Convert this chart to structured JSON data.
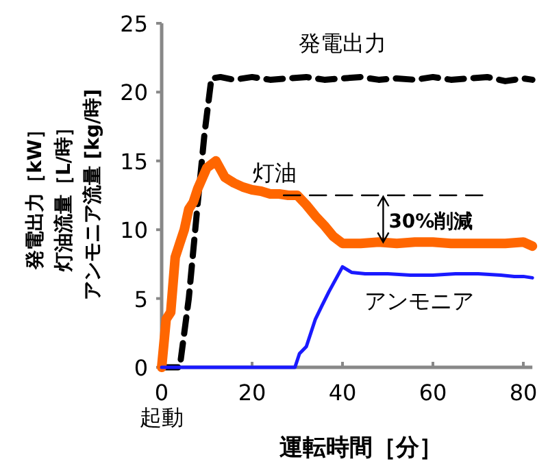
{
  "chart_data": {
    "type": "line",
    "xlabel": "運転時間［分］",
    "ylabel": "発電出力［kW］灯油流量［L/時］アンモニア流量 [kg/時]",
    "xlim": [
      0,
      82
    ],
    "ylim": [
      0,
      25
    ],
    "xticks": [
      {
        "value": 0,
        "label": "0\n起動"
      },
      20,
      40,
      60,
      80
    ],
    "yticks": [
      0,
      5,
      10,
      15,
      20,
      25
    ],
    "grid": false,
    "series": [
      {
        "name": "発電出力",
        "color": "#000000",
        "line_style": "dashed",
        "x": [
          0,
          4,
          6,
          8,
          9.5,
          11,
          13,
          16,
          20,
          24,
          28,
          32,
          36,
          40,
          44,
          48,
          52,
          56,
          60,
          64,
          68,
          72,
          76,
          80,
          82
        ],
        "values": [
          0,
          0,
          5,
          12,
          17,
          21,
          21.1,
          20.9,
          21.1,
          20.9,
          21,
          21.1,
          20.9,
          21,
          21.1,
          20.9,
          21,
          20.9,
          21.1,
          20.9,
          21,
          21.1,
          20.8,
          21,
          20.9
        ]
      },
      {
        "name": "灯油",
        "color": "#ff6600",
        "x": [
          0,
          1,
          2,
          3,
          4,
          5,
          6,
          7,
          8,
          10,
          12,
          14,
          16,
          18,
          20,
          22,
          24,
          26,
          28,
          30,
          32,
          34,
          36,
          38,
          40,
          44,
          48,
          52,
          56,
          60,
          64,
          68,
          72,
          76,
          80,
          82
        ],
        "values": [
          0,
          3.5,
          4,
          8,
          9,
          10,
          11.5,
          12,
          13,
          14.5,
          15,
          13.8,
          13.4,
          13.1,
          12.9,
          12.8,
          12.6,
          12.6,
          12.5,
          12.5,
          11.8,
          11,
          10.3,
          9.5,
          9,
          9,
          9.1,
          9,
          9.1,
          9.1,
          9,
          9,
          9,
          9,
          9.1,
          8.8
        ]
      },
      {
        "name": "アンモニア",
        "color": "#1a1aff",
        "x": [
          0,
          10,
          20,
          29.5,
          30.5,
          32,
          34,
          35.5,
          37,
          40,
          42,
          45,
          50,
          55,
          60,
          65,
          70,
          75,
          78,
          80,
          82
        ],
        "values": [
          0,
          0,
          0,
          0,
          1,
          1.5,
          3.5,
          4.5,
          5.5,
          7.3,
          6.9,
          6.8,
          6.8,
          6.7,
          6.7,
          6.8,
          6.8,
          6.7,
          6.6,
          6.6,
          6.5
        ]
      },
      {
        "type": "line",
        "color": "#000000",
        "line_style": "dashed",
        "x": [
          27,
          71
        ],
        "values": [
          12.5,
          12.5
        ]
      }
    ],
    "annotations": [
      "30%削減"
    ]
  }
}
